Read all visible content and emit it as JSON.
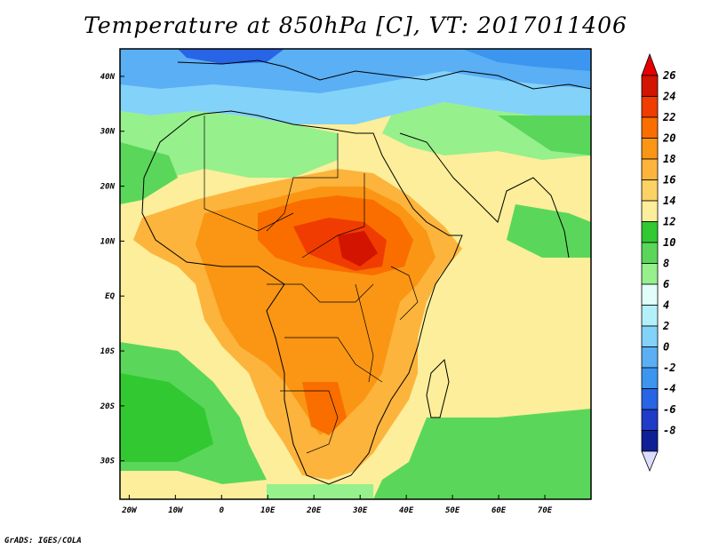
{
  "title": "Temperature at 850hPa [C], VT: 2017011406",
  "footer": "GrADS: IGES/COLA",
  "map": {
    "lon_range": [
      -22,
      80
    ],
    "lat_range": [
      -37,
      45
    ],
    "lat_ticks": [
      {
        "lat": 40,
        "label": "40N"
      },
      {
        "lat": 30,
        "label": "30N"
      },
      {
        "lat": 20,
        "label": "20N"
      },
      {
        "lat": 10,
        "label": "10N"
      },
      {
        "lat": 0,
        "label": "EQ"
      },
      {
        "lat": -10,
        "label": "10S"
      },
      {
        "lat": -20,
        "label": "20S"
      },
      {
        "lat": -30,
        "label": "30S"
      }
    ],
    "lon_ticks": [
      {
        "lon": -20,
        "label": "20W"
      },
      {
        "lon": -10,
        "label": "10W"
      },
      {
        "lon": 0,
        "label": "0"
      },
      {
        "lon": 10,
        "label": "10E"
      },
      {
        "lon": 20,
        "label": "20E"
      },
      {
        "lon": 30,
        "label": "30E"
      },
      {
        "lon": 40,
        "label": "40E"
      },
      {
        "lon": 50,
        "label": "50E"
      },
      {
        "lon": 60,
        "label": "60E"
      },
      {
        "lon": 70,
        "label": "70E"
      }
    ]
  },
  "colorbar": {
    "levels": [
      {
        "label": "26",
        "color": "#d21400"
      },
      {
        "label": "24",
        "color": "#f03c00"
      },
      {
        "label": "22",
        "color": "#fa6e00"
      },
      {
        "label": "20",
        "color": "#fa9614"
      },
      {
        "label": "18",
        "color": "#fcb43c"
      },
      {
        "label": "16",
        "color": "#fcd264"
      },
      {
        "label": "14",
        "color": "#fcee9a"
      },
      {
        "label": "12",
        "color": "#32c832"
      },
      {
        "label": "10",
        "color": "#5ad75a"
      },
      {
        "label": "8",
        "color": "#96f08c"
      },
      {
        "label": "6",
        "color": "#e1fffa"
      },
      {
        "label": "4",
        "color": "#b4f0fa"
      },
      {
        "label": "2",
        "color": "#82d2fa"
      },
      {
        "label": "0",
        "color": "#5aaff5"
      },
      {
        "label": "-2",
        "color": "#3c96f0"
      },
      {
        "label": "-4",
        "color": "#2864e6"
      },
      {
        "label": "-6",
        "color": "#1e3cc8"
      },
      {
        "label": "-8",
        "color": "#0f1f96"
      }
    ],
    "top_color": "#e60000",
    "bottom_color": "#dcdcff"
  },
  "colors": {
    "ocean_base": "#fcee9a",
    "atlantic_south": "#5ad75a",
    "atlantic_south_deep": "#32c832",
    "europe": "#5aaff5",
    "europe_deep": "#2864e6",
    "sahara_cool": "#96f08c",
    "africa_warm": "#fcb43c",
    "africa_hot": "#fa9614",
    "sahel_core": "#fa6e00",
    "sudan_core": "#f03c00"
  }
}
